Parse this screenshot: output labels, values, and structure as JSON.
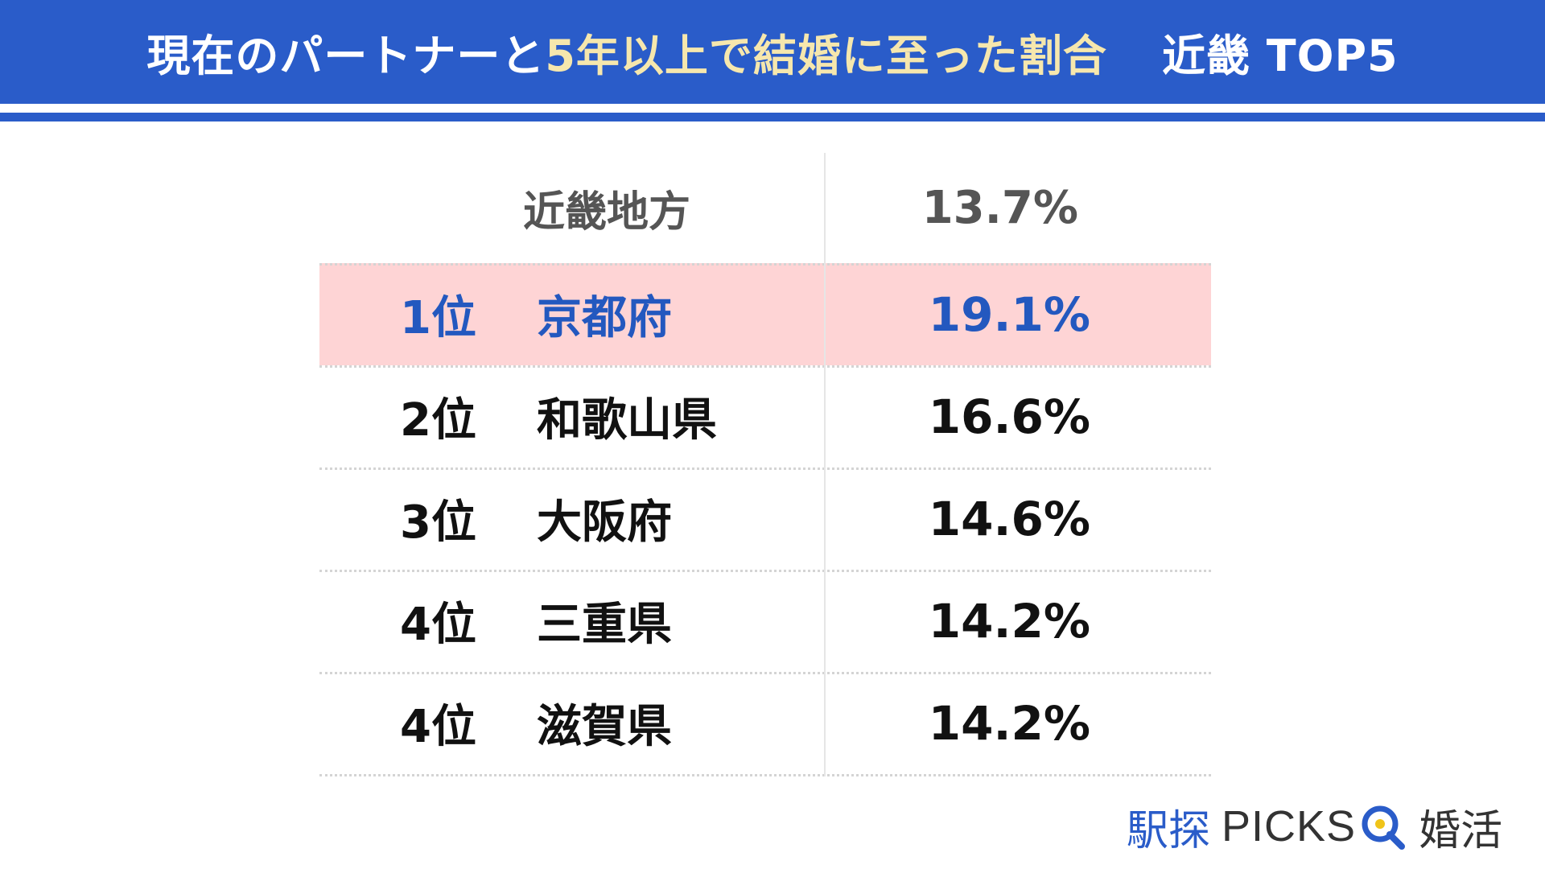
{
  "title": {
    "part1": "現在のパートナーと",
    "part2": "5年以上で結婚に至った割合",
    "part3": "近畿 TOP5"
  },
  "colors": {
    "header_bg": "#2a5cc9",
    "title_highlight": "#f6e7ad",
    "row_highlight_bg": "#fed4d5",
    "highlight_text": "#2358bf"
  },
  "summary": {
    "label": "近畿地方",
    "value": "13.7%"
  },
  "rows": [
    {
      "rank": "1位",
      "prefecture": "京都府",
      "value": "19.1%"
    },
    {
      "rank": "2位",
      "prefecture": "和歌山県",
      "value": "16.6%"
    },
    {
      "rank": "3位",
      "prefecture": "大阪府",
      "value": "14.6%"
    },
    {
      "rank": "4位",
      "prefecture": "三重県",
      "value": "14.2%"
    },
    {
      "rank": "4位",
      "prefecture": "滋賀県",
      "value": "14.2%"
    }
  ],
  "chart_data": {
    "type": "table",
    "columns": [
      "",
      "",
      ""
    ],
    "summary_row": {
      "label": "近畿地方",
      "value": 13.7,
      "unit": "%"
    },
    "rows": [
      {
        "rank": 1,
        "prefecture": "京都府",
        "value": 19.1
      },
      {
        "rank": 2,
        "prefecture": "和歌山県",
        "value": 16.6
      },
      {
        "rank": 3,
        "prefecture": "大阪府",
        "value": 14.6
      },
      {
        "rank": 4,
        "prefecture": "三重県",
        "value": 14.2
      },
      {
        "rank": 4,
        "prefecture": "滋賀県",
        "value": 14.2
      }
    ],
    "highlighted_row": 1
  },
  "logo": {
    "brand": "駅探",
    "product": "PICKS",
    "section": "婚活",
    "icon": "search-magnifier-icon"
  }
}
